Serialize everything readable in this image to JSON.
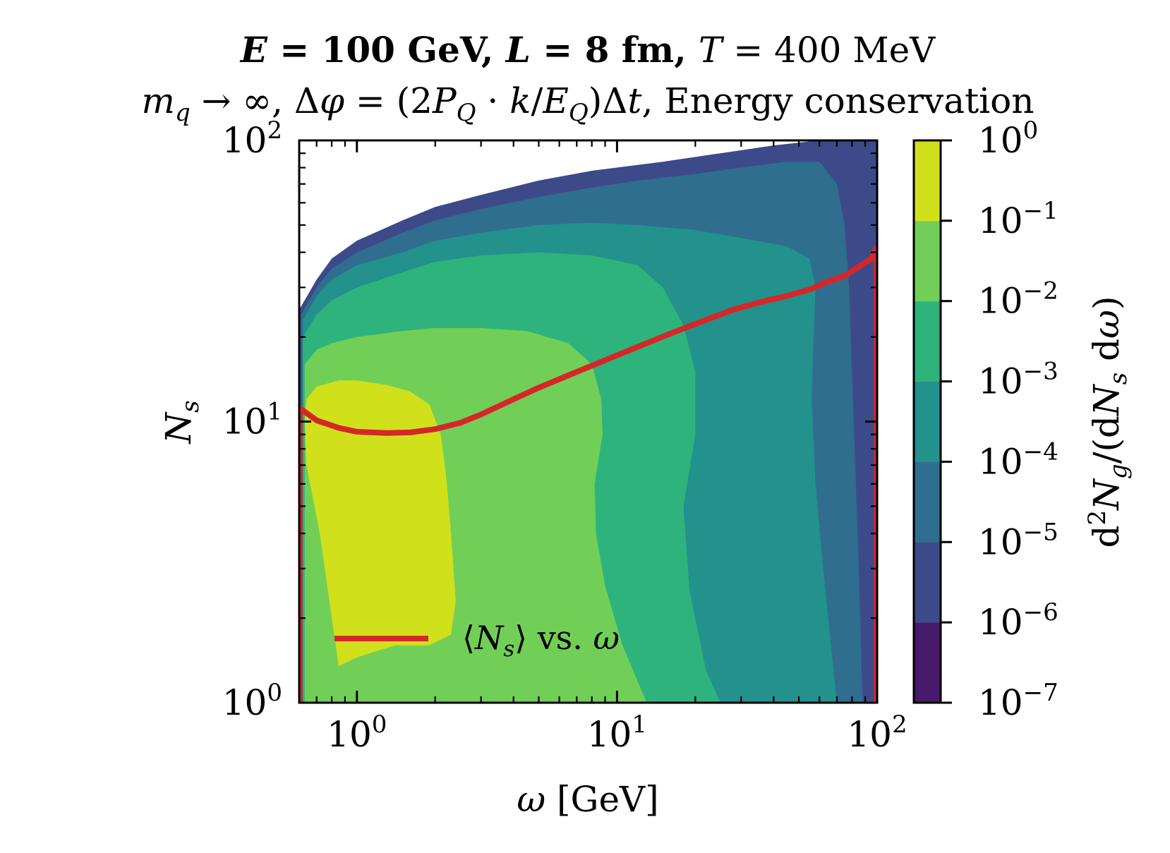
{
  "chart_data": {
    "type": "heatmap",
    "title": "E = 100 GeV,   L = 8 fm,   T = 400 MeV",
    "title_parts": [
      {
        "text": "E",
        "style": "bold-italic"
      },
      {
        "text": " = 100 GeV,   ",
        "style": "bold"
      },
      {
        "text": "L",
        "style": "bold-italic"
      },
      {
        "text": " = 8 fm,   ",
        "style": "bold"
      },
      {
        "text": "T",
        "style": "italic"
      },
      {
        "text": " = 400 MeV",
        "style": "normal"
      }
    ],
    "subtitle": "m_q → ∞,  Δφ = (2P_Q · k/E_Q)Δt,  Energy conservation",
    "subtitle_parts": [
      {
        "text": "m",
        "style": "italic"
      },
      {
        "text": "q",
        "style": "italic-sub"
      },
      {
        "text": " → ∞,  Δ",
        "style": "normal"
      },
      {
        "text": "φ",
        "style": "italic"
      },
      {
        "text": " = (2",
        "style": "normal"
      },
      {
        "text": "P",
        "style": "italic"
      },
      {
        "text": "Q",
        "style": "italic-sub"
      },
      {
        "text": " · ",
        "style": "normal"
      },
      {
        "text": "k",
        "style": "italic"
      },
      {
        "text": "/",
        "style": "normal"
      },
      {
        "text": "E",
        "style": "italic"
      },
      {
        "text": "Q",
        "style": "italic-sub"
      },
      {
        "text": ")Δ",
        "style": "normal"
      },
      {
        "text": "t",
        "style": "italic"
      },
      {
        "text": ",  Energy conservation",
        "style": "normal"
      }
    ],
    "xlabel": "ω [GeV]",
    "xlabel_parts": [
      {
        "text": "ω",
        "style": "italic"
      },
      {
        "text": " [GeV]",
        "style": "normal"
      }
    ],
    "ylabel": "N_s",
    "ylabel_parts": [
      {
        "text": "N",
        "style": "italic"
      },
      {
        "text": "s",
        "style": "italic-sub"
      }
    ],
    "xscale": "log",
    "yscale": "log",
    "xlim": [
      0.6,
      100
    ],
    "ylim": [
      1,
      100
    ],
    "xticks": [
      {
        "value": 1,
        "label": "10",
        "exp": "0"
      },
      {
        "value": 10,
        "label": "10",
        "exp": "1"
      },
      {
        "value": 100,
        "label": "10",
        "exp": "2"
      }
    ],
    "yticks": [
      {
        "value": 1,
        "label": "10",
        "exp": "0"
      },
      {
        "value": 10,
        "label": "10",
        "exp": "1"
      },
      {
        "value": 100,
        "label": "10",
        "exp": "2"
      }
    ],
    "colorbar": {
      "label": "d²N_g/(dN_s dω)",
      "label_parts": [
        {
          "text": "d",
          "style": "normal"
        },
        {
          "text": "2",
          "style": "sup"
        },
        {
          "text": "N",
          "style": "italic"
        },
        {
          "text": "g",
          "style": "italic-sub"
        },
        {
          "text": "/(d",
          "style": "normal"
        },
        {
          "text": "N",
          "style": "italic"
        },
        {
          "text": "s",
          "style": "italic-sub"
        },
        {
          "text": " d",
          "style": "normal"
        },
        {
          "text": "ω",
          "style": "italic"
        },
        {
          "text": ")",
          "style": "normal"
        }
      ],
      "scale": "log",
      "levels": [
        1e-07,
        1e-06,
        1e-05,
        0.0001,
        0.001,
        0.01,
        0.1,
        1
      ],
      "colors": [
        "#481a6c",
        "#3d4a89",
        "#2f6e8e",
        "#23918c",
        "#2eb37c",
        "#71cf57",
        "#d0e11c"
      ],
      "tick_labels": [
        {
          "value": 1e-07,
          "label": "10",
          "exp": "−7"
        },
        {
          "value": 1e-06,
          "label": "10",
          "exp": "−6"
        },
        {
          "value": 1e-05,
          "label": "10",
          "exp": "−5"
        },
        {
          "value": 0.0001,
          "label": "10",
          "exp": "−4"
        },
        {
          "value": 0.001,
          "label": "10",
          "exp": "−3"
        },
        {
          "value": 0.01,
          "label": "10",
          "exp": "−2"
        },
        {
          "value": 0.1,
          "label": "10",
          "exp": "−1"
        },
        {
          "value": 1,
          "label": "10",
          "exp": "0"
        }
      ]
    },
    "contour_regions": [
      {
        "level_index": 1,
        "boundary": [
          [
            0.6,
            1
          ],
          [
            0.6,
            25
          ],
          [
            0.7,
            32
          ],
          [
            0.8,
            38
          ],
          [
            1.0,
            44
          ],
          [
            1.5,
            52
          ],
          [
            2.0,
            58
          ],
          [
            3.0,
            64
          ],
          [
            5.0,
            72
          ],
          [
            8.0,
            78
          ],
          [
            15.0,
            84
          ],
          [
            25.0,
            90
          ],
          [
            40.0,
            96
          ],
          [
            60.0,
            100
          ],
          [
            100.0,
            100
          ],
          [
            100.0,
            1
          ]
        ]
      },
      {
        "level_index": 2,
        "boundary": [
          [
            0.61,
            1
          ],
          [
            0.61,
            24
          ],
          [
            0.7,
            30
          ],
          [
            0.8,
            35
          ],
          [
            1.0,
            40
          ],
          [
            1.5,
            47
          ],
          [
            2.0,
            52
          ],
          [
            3.0,
            57
          ],
          [
            5.0,
            63
          ],
          [
            8.0,
            68
          ],
          [
            12.0,
            72
          ],
          [
            20.0,
            76
          ],
          [
            30.0,
            80
          ],
          [
            45.0,
            84
          ],
          [
            60.0,
            84
          ],
          [
            70.0,
            70
          ],
          [
            75.0,
            50
          ],
          [
            78.0,
            30
          ],
          [
            80.0,
            15
          ],
          [
            82.0,
            8
          ],
          [
            85.0,
            3
          ],
          [
            88.0,
            1
          ]
        ]
      },
      {
        "level_index": 3,
        "boundary": [
          [
            0.62,
            1
          ],
          [
            0.62,
            23
          ],
          [
            0.7,
            28
          ],
          [
            0.8,
            32
          ],
          [
            1.0,
            36
          ],
          [
            1.5,
            40
          ],
          [
            2.0,
            44
          ],
          [
            3.0,
            47
          ],
          [
            5.0,
            50
          ],
          [
            8.0,
            51
          ],
          [
            12.0,
            50
          ],
          [
            20.0,
            48
          ],
          [
            30.0,
            45
          ],
          [
            45.0,
            42
          ],
          [
            55.0,
            38
          ],
          [
            58.0,
            30
          ],
          [
            57.0,
            20
          ],
          [
            56.0,
            12
          ],
          [
            58.0,
            6
          ],
          [
            62.0,
            3
          ],
          [
            70.0,
            1
          ]
        ]
      },
      {
        "level_index": 4,
        "boundary": [
          [
            0.62,
            1
          ],
          [
            0.62,
            20
          ],
          [
            0.7,
            24
          ],
          [
            0.8,
            27
          ],
          [
            1.0,
            30
          ],
          [
            1.5,
            34
          ],
          [
            2.0,
            37
          ],
          [
            3.0,
            39
          ],
          [
            5.0,
            40
          ],
          [
            8.0,
            39
          ],
          [
            12.0,
            36
          ],
          [
            15.0,
            30
          ],
          [
            18.0,
            22
          ],
          [
            20.0,
            15
          ],
          [
            20.0,
            9
          ],
          [
            18.0,
            5
          ],
          [
            19.0,
            2.5
          ],
          [
            22.0,
            1.3
          ],
          [
            25.0,
            1
          ]
        ]
      },
      {
        "level_index": 5,
        "boundary": [
          [
            0.63,
            1
          ],
          [
            0.63,
            16
          ],
          [
            0.7,
            18
          ],
          [
            0.8,
            19
          ],
          [
            1.0,
            20
          ],
          [
            1.5,
            21
          ],
          [
            2.0,
            21.5
          ],
          [
            3.0,
            21.5
          ],
          [
            4.5,
            21
          ],
          [
            6.5,
            19
          ],
          [
            8.0,
            16
          ],
          [
            8.7,
            12
          ],
          [
            8.8,
            9
          ],
          [
            8.2,
            6
          ],
          [
            8.3,
            4
          ],
          [
            9.0,
            2.6
          ],
          [
            10.5,
            1.6
          ],
          [
            13.0,
            1
          ]
        ]
      },
      {
        "level_index": 6,
        "boundary": [
          [
            0.85,
            1.35
          ],
          [
            0.72,
            4
          ],
          [
            0.64,
            7
          ],
          [
            0.63,
            10
          ],
          [
            0.64,
            12
          ],
          [
            0.7,
            13.3
          ],
          [
            0.85,
            14
          ],
          [
            1.0,
            14
          ],
          [
            1.3,
            13.5
          ],
          [
            1.6,
            12.8
          ],
          [
            1.9,
            11.5
          ],
          [
            2.1,
            9
          ],
          [
            2.2,
            6.5
          ],
          [
            2.3,
            4
          ],
          [
            2.4,
            2.3
          ],
          [
            2.3,
            1.75
          ],
          [
            1.9,
            1.6
          ],
          [
            1.4,
            1.6
          ],
          [
            1.0,
            1.45
          ]
        ]
      }
    ],
    "series": [
      {
        "name": "⟨N_s⟩ vs. ω",
        "legend_parts": [
          {
            "text": "⟨",
            "style": "normal"
          },
          {
            "text": "N",
            "style": "italic"
          },
          {
            "text": "s",
            "style": "italic-sub"
          },
          {
            "text": "⟩ vs. ",
            "style": "normal"
          },
          {
            "text": "ω",
            "style": "italic"
          }
        ],
        "color": "#d62728",
        "x": [
          0.6,
          0.7,
          0.85,
          1.0,
          1.3,
          1.6,
          2.0,
          2.5,
          3.0,
          4.0,
          5.0,
          6.5,
          8.0,
          10.0,
          13.0,
          17.0,
          22.0,
          28.0,
          35.0,
          45.0,
          55.0,
          65.0,
          75.0,
          85.0,
          95.0,
          100.0
        ],
        "y": [
          11.2,
          10.1,
          9.5,
          9.2,
          9.1,
          9.15,
          9.4,
          9.9,
          10.6,
          12.0,
          13.2,
          14.6,
          15.8,
          17.2,
          19.0,
          21.0,
          23.0,
          25.0,
          26.5,
          28.0,
          29.5,
          31.5,
          33.0,
          35.5,
          38.0,
          42.0
        ]
      }
    ],
    "legend_position": "lower-left"
  }
}
